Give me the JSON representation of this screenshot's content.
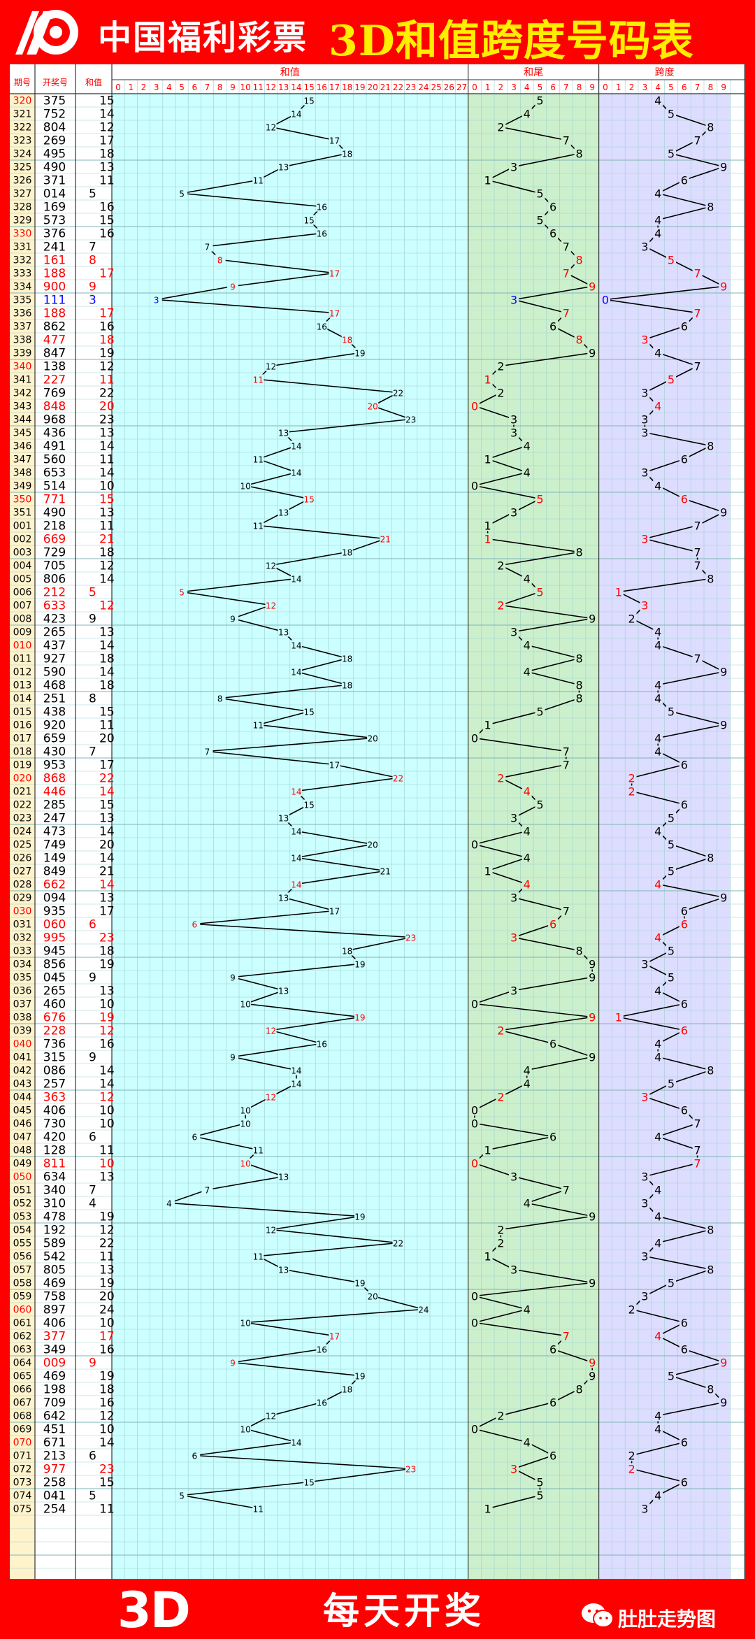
{
  "header": {
    "logo_text": "中国福利彩票",
    "title": "3D和值跨度号码表"
  },
  "footer": {
    "logo_3d": "3D",
    "slogan": "每天开奖",
    "account": "肚肚走势图"
  },
  "columns": {
    "period": "期号",
    "number": "开奖号",
    "sum": "和值",
    "sum_section": "和值",
    "tail_section": "和尾",
    "span_section": "跨度"
  },
  "colors": {
    "red": "#ff0000",
    "yellow": "#ffee00",
    "blue": "#0000ff",
    "sum_bg": "#ccffff",
    "tail_bg": "#ccf0cc",
    "span_bg": "#ddddff",
    "period_bg": "#fff3cc",
    "grid": "#9fcfcf"
  },
  "chart_data": {
    "type": "table",
    "axes": {
      "sum": [
        0,
        27
      ],
      "tail": [
        0,
        9
      ],
      "span": [
        0,
        9
      ]
    },
    "draws": [
      {
        "period": "320",
        "number": "375",
        "sum": 15,
        "tail": 5,
        "span": 4
      },
      {
        "period": "321",
        "number": "752",
        "sum": 14,
        "tail": 4,
        "span": 5
      },
      {
        "period": "322",
        "number": "804",
        "sum": 12,
        "tail": 2,
        "span": 8
      },
      {
        "period": "323",
        "number": "269",
        "sum": 17,
        "tail": 7,
        "span": 7
      },
      {
        "period": "324",
        "number": "495",
        "sum": 18,
        "tail": 8,
        "span": 5
      },
      {
        "period": "325",
        "number": "490",
        "sum": 13,
        "tail": 3,
        "span": 9
      },
      {
        "period": "326",
        "number": "371",
        "sum": 11,
        "tail": 1,
        "span": 6
      },
      {
        "period": "327",
        "number": "014",
        "sum": 5,
        "tail": 5,
        "span": 4
      },
      {
        "period": "328",
        "number": "169",
        "sum": 16,
        "tail": 6,
        "span": 8
      },
      {
        "period": "329",
        "number": "573",
        "sum": 15,
        "tail": 5,
        "span": 4
      },
      {
        "period": "330",
        "number": "376",
        "sum": 16,
        "tail": 6,
        "span": 4
      },
      {
        "period": "331",
        "number": "241",
        "sum": 7,
        "tail": 7,
        "span": 3
      },
      {
        "period": "332",
        "number": "161",
        "sum": 8,
        "tail": 8,
        "span": 5
      },
      {
        "period": "333",
        "number": "188",
        "sum": 17,
        "tail": 7,
        "span": 7
      },
      {
        "period": "334",
        "number": "900",
        "sum": 9,
        "tail": 9,
        "span": 9
      },
      {
        "period": "335",
        "number": "111",
        "sum": 3,
        "tail": 3,
        "span": 0
      },
      {
        "period": "336",
        "number": "188",
        "sum": 17,
        "tail": 7,
        "span": 7
      },
      {
        "period": "337",
        "number": "862",
        "sum": 16,
        "tail": 6,
        "span": 6
      },
      {
        "period": "338",
        "number": "477",
        "sum": 18,
        "tail": 8,
        "span": 3
      },
      {
        "period": "339",
        "number": "847",
        "sum": 19,
        "tail": 9,
        "span": 4
      },
      {
        "period": "340",
        "number": "138",
        "sum": 12,
        "tail": 2,
        "span": 7
      },
      {
        "period": "341",
        "number": "227",
        "sum": 11,
        "tail": 1,
        "span": 5
      },
      {
        "period": "342",
        "number": "769",
        "sum": 22,
        "tail": 2,
        "span": 3
      },
      {
        "period": "343",
        "number": "848",
        "sum": 20,
        "tail": 0,
        "span": 4
      },
      {
        "period": "344",
        "number": "968",
        "sum": 23,
        "tail": 3,
        "span": 3
      },
      {
        "period": "345",
        "number": "436",
        "sum": 13,
        "tail": 3,
        "span": 3
      },
      {
        "period": "346",
        "number": "491",
        "sum": 14,
        "tail": 4,
        "span": 8
      },
      {
        "period": "347",
        "number": "560",
        "sum": 11,
        "tail": 1,
        "span": 6
      },
      {
        "period": "348",
        "number": "653",
        "sum": 14,
        "tail": 4,
        "span": 3
      },
      {
        "period": "349",
        "number": "514",
        "sum": 10,
        "tail": 0,
        "span": 4
      },
      {
        "period": "350",
        "number": "771",
        "sum": 15,
        "tail": 5,
        "span": 6
      },
      {
        "period": "351",
        "number": "490",
        "sum": 13,
        "tail": 3,
        "span": 9
      },
      {
        "period": "001",
        "number": "218",
        "sum": 11,
        "tail": 1,
        "span": 7
      },
      {
        "period": "002",
        "number": "669",
        "sum": 21,
        "tail": 1,
        "span": 3
      },
      {
        "period": "003",
        "number": "729",
        "sum": 18,
        "tail": 8,
        "span": 7
      },
      {
        "period": "004",
        "number": "705",
        "sum": 12,
        "tail": 2,
        "span": 7
      },
      {
        "period": "005",
        "number": "806",
        "sum": 14,
        "tail": 4,
        "span": 8
      },
      {
        "period": "006",
        "number": "212",
        "sum": 5,
        "tail": 5,
        "span": 1
      },
      {
        "period": "007",
        "number": "633",
        "sum": 12,
        "tail": 2,
        "span": 3
      },
      {
        "period": "008",
        "number": "423",
        "sum": 9,
        "tail": 9,
        "span": 2
      },
      {
        "period": "009",
        "number": "265",
        "sum": 13,
        "tail": 3,
        "span": 4
      },
      {
        "period": "010",
        "number": "437",
        "sum": 14,
        "tail": 4,
        "span": 4
      },
      {
        "period": "011",
        "number": "927",
        "sum": 18,
        "tail": 8,
        "span": 7
      },
      {
        "period": "012",
        "number": "590",
        "sum": 14,
        "tail": 4,
        "span": 9
      },
      {
        "period": "013",
        "number": "468",
        "sum": 18,
        "tail": 8,
        "span": 4
      },
      {
        "period": "014",
        "number": "251",
        "sum": 8,
        "tail": 8,
        "span": 4
      },
      {
        "period": "015",
        "number": "438",
        "sum": 15,
        "tail": 5,
        "span": 5
      },
      {
        "period": "016",
        "number": "920",
        "sum": 11,
        "tail": 1,
        "span": 9
      },
      {
        "period": "017",
        "number": "659",
        "sum": 20,
        "tail": 0,
        "span": 4
      },
      {
        "period": "018",
        "number": "430",
        "sum": 7,
        "tail": 7,
        "span": 4
      },
      {
        "period": "019",
        "number": "953",
        "sum": 17,
        "tail": 7,
        "span": 6
      },
      {
        "period": "020",
        "number": "868",
        "sum": 22,
        "tail": 2,
        "span": 2
      },
      {
        "period": "021",
        "number": "446",
        "sum": 14,
        "tail": 4,
        "span": 2
      },
      {
        "period": "022",
        "number": "285",
        "sum": 15,
        "tail": 5,
        "span": 6
      },
      {
        "period": "023",
        "number": "247",
        "sum": 13,
        "tail": 3,
        "span": 5
      },
      {
        "period": "024",
        "number": "473",
        "sum": 14,
        "tail": 4,
        "span": 4
      },
      {
        "period": "025",
        "number": "749",
        "sum": 20,
        "tail": 0,
        "span": 5
      },
      {
        "period": "026",
        "number": "149",
        "sum": 14,
        "tail": 4,
        "span": 8
      },
      {
        "period": "027",
        "number": "849",
        "sum": 21,
        "tail": 1,
        "span": 5
      },
      {
        "period": "028",
        "number": "662",
        "sum": 14,
        "tail": 4,
        "span": 4
      },
      {
        "period": "029",
        "number": "094",
        "sum": 13,
        "tail": 3,
        "span": 9
      },
      {
        "period": "030",
        "number": "935",
        "sum": 17,
        "tail": 7,
        "span": 6
      },
      {
        "period": "031",
        "number": "060",
        "sum": 6,
        "tail": 6,
        "span": 6
      },
      {
        "period": "032",
        "number": "995",
        "sum": 23,
        "tail": 3,
        "span": 4
      },
      {
        "period": "033",
        "number": "945",
        "sum": 18,
        "tail": 8,
        "span": 5
      },
      {
        "period": "034",
        "number": "856",
        "sum": 19,
        "tail": 9,
        "span": 3
      },
      {
        "period": "035",
        "number": "045",
        "sum": 9,
        "tail": 9,
        "span": 5
      },
      {
        "period": "036",
        "number": "265",
        "sum": 13,
        "tail": 3,
        "span": 4
      },
      {
        "period": "037",
        "number": "460",
        "sum": 10,
        "tail": 0,
        "span": 6
      },
      {
        "period": "038",
        "number": "676",
        "sum": 19,
        "tail": 9,
        "span": 1
      },
      {
        "period": "039",
        "number": "228",
        "sum": 12,
        "tail": 2,
        "span": 6
      },
      {
        "period": "040",
        "number": "736",
        "sum": 16,
        "tail": 6,
        "span": 4
      },
      {
        "period": "041",
        "number": "315",
        "sum": 9,
        "tail": 9,
        "span": 4
      },
      {
        "period": "042",
        "number": "086",
        "sum": 14,
        "tail": 4,
        "span": 8
      },
      {
        "period": "043",
        "number": "257",
        "sum": 14,
        "tail": 4,
        "span": 5
      },
      {
        "period": "044",
        "number": "363",
        "sum": 12,
        "tail": 2,
        "span": 3
      },
      {
        "period": "045",
        "number": "406",
        "sum": 10,
        "tail": 0,
        "span": 6
      },
      {
        "period": "046",
        "number": "730",
        "sum": 10,
        "tail": 0,
        "span": 7
      },
      {
        "period": "047",
        "number": "420",
        "sum": 6,
        "tail": 6,
        "span": 4
      },
      {
        "period": "048",
        "number": "128",
        "sum": 11,
        "tail": 1,
        "span": 7
      },
      {
        "period": "049",
        "number": "811",
        "sum": 10,
        "tail": 0,
        "span": 7
      },
      {
        "period": "050",
        "number": "634",
        "sum": 13,
        "tail": 3,
        "span": 3
      },
      {
        "period": "051",
        "number": "340",
        "sum": 7,
        "tail": 7,
        "span": 4
      },
      {
        "period": "052",
        "number": "310",
        "sum": 4,
        "tail": 4,
        "span": 3
      },
      {
        "period": "053",
        "number": "478",
        "sum": 19,
        "tail": 9,
        "span": 4
      },
      {
        "period": "054",
        "number": "192",
        "sum": 12,
        "tail": 2,
        "span": 8
      },
      {
        "period": "055",
        "number": "589",
        "sum": 22,
        "tail": 2,
        "span": 4
      },
      {
        "period": "056",
        "number": "542",
        "sum": 11,
        "tail": 1,
        "span": 3
      },
      {
        "period": "057",
        "number": "805",
        "sum": 13,
        "tail": 3,
        "span": 8
      },
      {
        "period": "058",
        "number": "469",
        "sum": 19,
        "tail": 9,
        "span": 5
      },
      {
        "period": "059",
        "number": "758",
        "sum": 20,
        "tail": 0,
        "span": 3
      },
      {
        "period": "060",
        "number": "897",
        "sum": 24,
        "tail": 4,
        "span": 2
      },
      {
        "period": "061",
        "number": "406",
        "sum": 10,
        "tail": 0,
        "span": 6
      },
      {
        "period": "062",
        "number": "377",
        "sum": 17,
        "tail": 7,
        "span": 4
      },
      {
        "period": "063",
        "number": "349",
        "sum": 16,
        "tail": 6,
        "span": 6
      },
      {
        "period": "064",
        "number": "009",
        "sum": 9,
        "tail": 9,
        "span": 9
      },
      {
        "period": "065",
        "number": "469",
        "sum": 19,
        "tail": 9,
        "span": 5
      },
      {
        "period": "066",
        "number": "198",
        "sum": 18,
        "tail": 8,
        "span": 8
      },
      {
        "period": "067",
        "number": "709",
        "sum": 16,
        "tail": 6,
        "span": 9
      },
      {
        "period": "068",
        "number": "642",
        "sum": 12,
        "tail": 2,
        "span": 4
      },
      {
        "period": "069",
        "number": "451",
        "sum": 10,
        "tail": 0,
        "span": 4
      },
      {
        "period": "070",
        "number": "671",
        "sum": 14,
        "tail": 4,
        "span": 6
      },
      {
        "period": "071",
        "number": "213",
        "sum": 6,
        "tail": 6,
        "span": 2
      },
      {
        "period": "072",
        "number": "977",
        "sum": 23,
        "tail": 3,
        "span": 2
      },
      {
        "period": "073",
        "number": "258",
        "sum": 15,
        "tail": 5,
        "span": 6
      },
      {
        "period": "074",
        "number": "041",
        "sum": 5,
        "tail": 5,
        "span": 4
      },
      {
        "period": "075",
        "number": "254",
        "sum": 11,
        "tail": 1,
        "span": 3
      }
    ],
    "red_periods": [
      "320",
      "330",
      "340",
      "350",
      "010",
      "020",
      "030",
      "040",
      "050",
      "060",
      "070"
    ],
    "highlight_red_rows": [
      "332",
      "333",
      "334",
      "336",
      "338",
      "341",
      "343",
      "350",
      "002",
      "006",
      "007",
      "020",
      "021",
      "028",
      "031",
      "032",
      "038",
      "039",
      "044",
      "049",
      "062",
      "064",
      "072"
    ],
    "highlight_blue_rows": [
      "335"
    ],
    "red_tail_rows": [
      "332",
      "333",
      "334",
      "336",
      "338",
      "341",
      "343",
      "350",
      "002",
      "006",
      "007",
      "020",
      "021",
      "028",
      "031",
      "032",
      "038",
      "039",
      "044",
      "049",
      "062",
      "064",
      "072"
    ],
    "red_span_rows": [
      "332",
      "333",
      "334",
      "336",
      "338",
      "341",
      "343",
      "350",
      "002",
      "006",
      "007",
      "020",
      "021",
      "028",
      "031",
      "032",
      "038",
      "039",
      "044",
      "049",
      "062",
      "064",
      "072"
    ]
  }
}
